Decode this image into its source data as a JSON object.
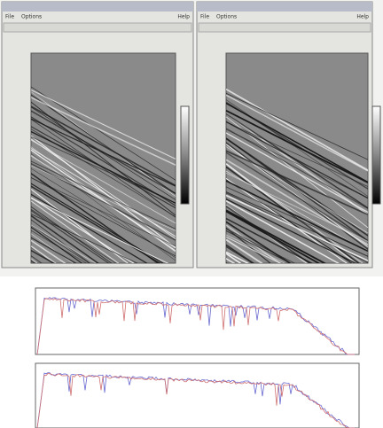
{
  "windows": [
    {
      "menu": [
        "File",
        "Options"
      ],
      "help": "Help"
    },
    {
      "menu": [
        "File",
        "Options"
      ],
      "help": "Help"
    }
  ]
}
